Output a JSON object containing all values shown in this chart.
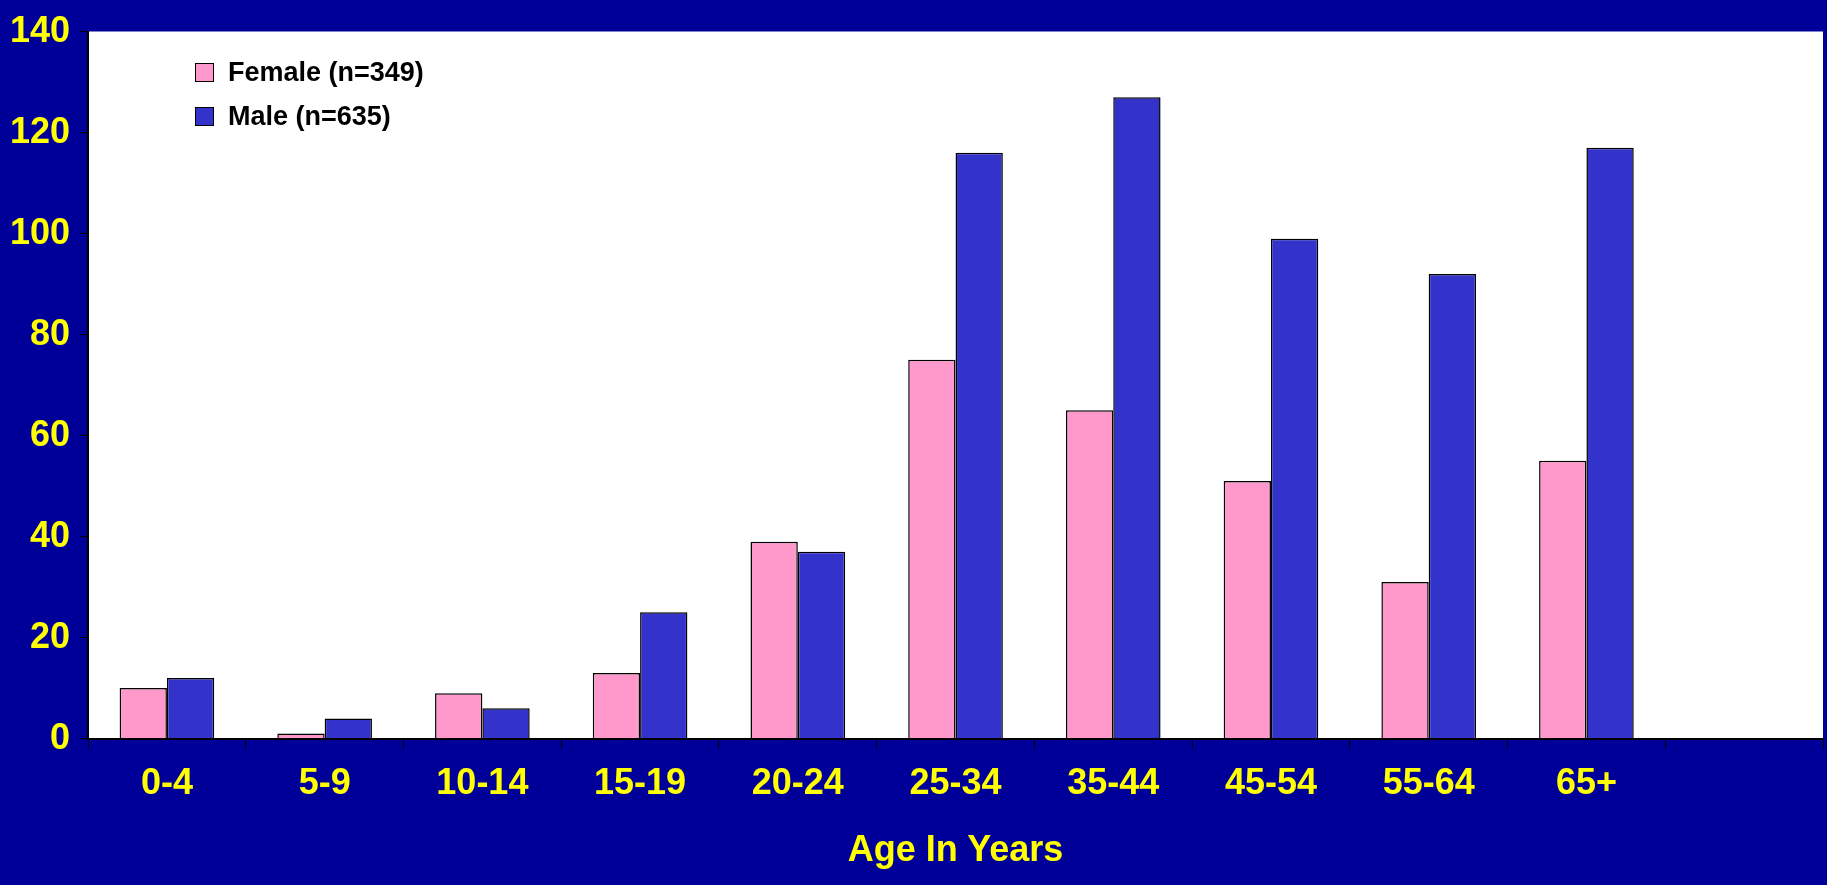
{
  "chart_data": {
    "type": "bar",
    "xlabel": "Age In Years",
    "categories": [
      "0-4",
      "5-9",
      "10-14",
      "15-19",
      "20-24",
      "25-34",
      "35-44",
      "45-54",
      "55-64",
      "65+",
      null
    ],
    "series": [
      {
        "name": "Female (n=349)",
        "color": "#ff99cc",
        "values": [
          10,
          1,
          9,
          13,
          39,
          75,
          65,
          51,
          31,
          55,
          null
        ]
      },
      {
        "name": "Male (n=635)",
        "color": "#3333cc",
        "values": [
          12,
          4,
          6,
          25,
          37,
          116,
          127,
          99,
          92,
          117,
          null
        ]
      }
    ],
    "ylim": [
      0,
      140
    ],
    "yticks": [
      0,
      20,
      40,
      60,
      80,
      100,
      120,
      140
    ],
    "grid": false,
    "legend": "top left"
  }
}
